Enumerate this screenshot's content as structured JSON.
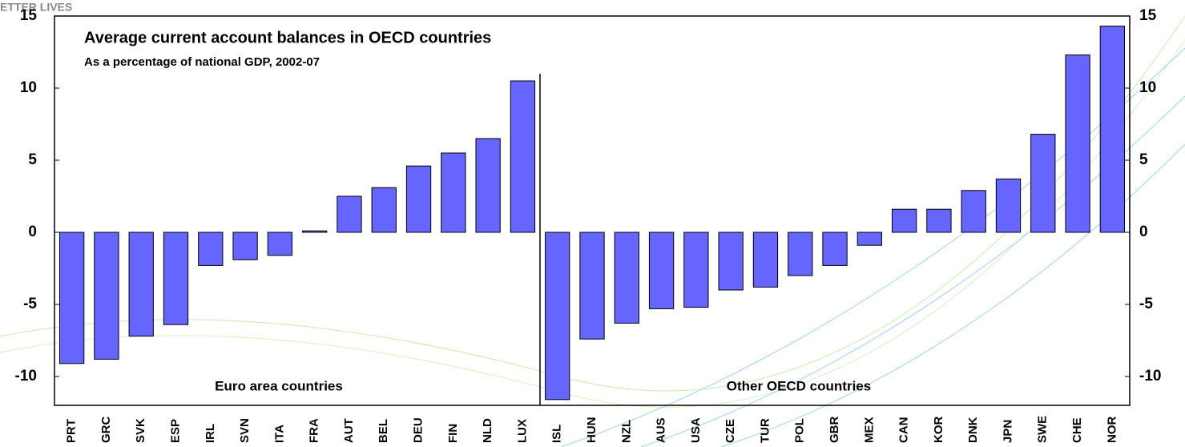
{
  "logo_text": "ETTER LIVES",
  "chart_data": {
    "type": "bar",
    "title": "Average current account balances in OECD countries",
    "subtitle": "As a percentage of national GDP, 2002-07",
    "annotations": [
      "Euro area countries",
      "Other OECD countries"
    ],
    "categories": [
      "PRT",
      "GRC",
      "SVK",
      "ESP",
      "IRL",
      "SVN",
      "ITA",
      "FRA",
      "AUT",
      "BEL",
      "DEU",
      "FIN",
      "NLD",
      "LUX",
      "ISL",
      "HUN",
      "NZL",
      "AUS",
      "USA",
      "CZE",
      "TUR",
      "POL",
      "GBR",
      "MEX",
      "CAN",
      "KOR",
      "DNK",
      "JPN",
      "SWE",
      "CHE",
      "NOR"
    ],
    "values": [
      -9.1,
      -8.8,
      -7.2,
      -6.4,
      -2.3,
      -1.9,
      -1.6,
      0.1,
      2.5,
      3.1,
      4.6,
      5.5,
      6.5,
      10.5,
      -11.6,
      -7.4,
      -6.3,
      -5.3,
      -5.2,
      -4.0,
      -3.8,
      -3.0,
      -2.3,
      -0.9,
      1.6,
      1.6,
      2.9,
      3.7,
      6.8,
      12.3,
      14.3
    ],
    "color": "#6666ff",
    "ylim": [
      -12,
      15
    ],
    "yticks": [
      -10,
      -5,
      0,
      5,
      10,
      15
    ],
    "right_axis": true
  }
}
